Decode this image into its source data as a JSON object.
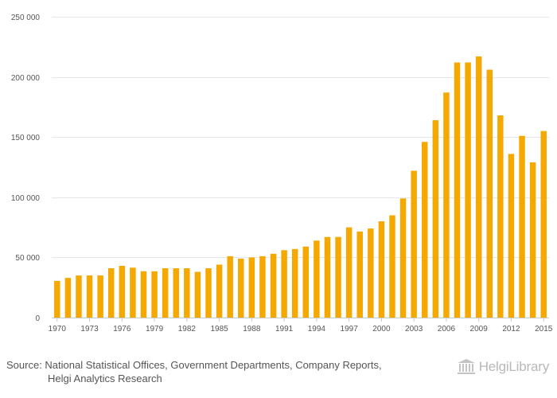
{
  "chart_data": {
    "type": "bar",
    "title": "",
    "xlabel": "",
    "ylabel": "",
    "ylim": [
      0,
      250000
    ],
    "yticks": [
      0,
      50000,
      100000,
      150000,
      200000,
      250000
    ],
    "ytick_labels": [
      "0",
      "50 000",
      "100 000",
      "150 000",
      "200 000",
      "250 000"
    ],
    "xtick_labels": [
      "1970",
      "1973",
      "1976",
      "1979",
      "1982",
      "1985",
      "1988",
      "1991",
      "1994",
      "1997",
      "2000",
      "2003",
      "2006",
      "2009",
      "2012",
      "2015"
    ],
    "categories": [
      "1970",
      "1971",
      "1972",
      "1973",
      "1974",
      "1975",
      "1976",
      "1977",
      "1978",
      "1979",
      "1980",
      "1981",
      "1982",
      "1983",
      "1984",
      "1985",
      "1986",
      "1987",
      "1988",
      "1989",
      "1990",
      "1991",
      "1992",
      "1993",
      "1994",
      "1995",
      "1996",
      "1997",
      "1998",
      "1999",
      "2000",
      "2001",
      "2002",
      "2003",
      "2004",
      "2005",
      "2006",
      "2007",
      "2008",
      "2009",
      "2010",
      "2011",
      "2012",
      "2013",
      "2014",
      "2015"
    ],
    "values": [
      30500,
      33000,
      35000,
      35000,
      35000,
      41000,
      43000,
      41500,
      38500,
      38500,
      41000,
      41000,
      41000,
      38000,
      41000,
      44000,
      51000,
      49000,
      50000,
      51000,
      53000,
      56000,
      57000,
      59000,
      64000,
      67000,
      67000,
      75000,
      71500,
      74000,
      80000,
      85000,
      99000,
      122000,
      146000,
      164000,
      187000,
      212000,
      212000,
      217000,
      206000,
      168000,
      136000,
      151000,
      129000,
      155000
    ],
    "color": "#f5a800"
  },
  "footer": {
    "source_line1": "Source: National Statistical Offices, Government Departments, Company Reports,",
    "source_line2": "Helgi Analytics Research",
    "brand": "HelgiLibrary"
  }
}
